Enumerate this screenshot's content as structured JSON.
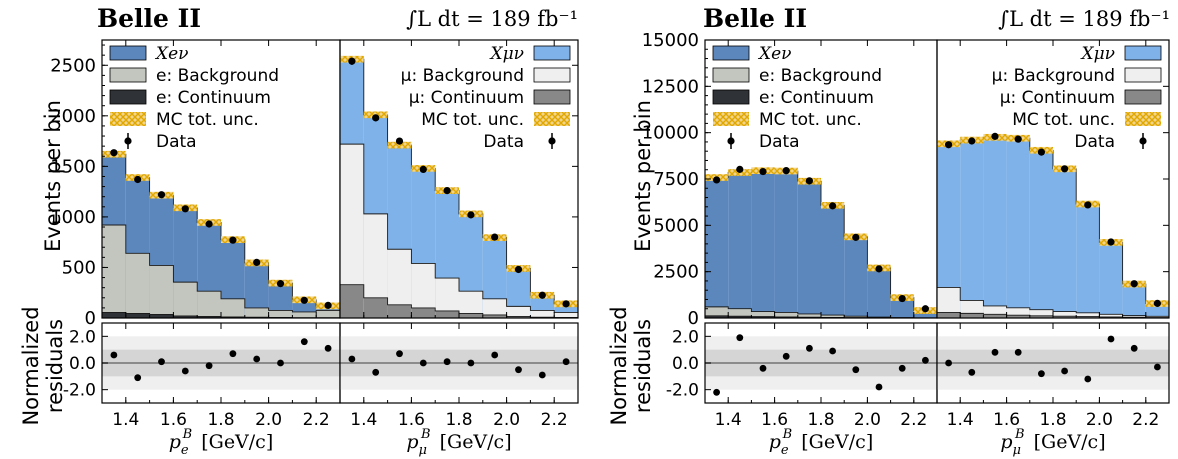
{
  "chart_data": [
    {
      "type": "bar",
      "experiment": "Belle II",
      "luminosity": "∫L dt = 189 fb⁻¹",
      "ylabel": "Events per bin",
      "reslabel": "Normalized residuals",
      "ylim": [
        0,
        2750
      ],
      "yticks": [
        0,
        500,
        1000,
        1500,
        2000,
        2500
      ],
      "res_ylim": [
        -3,
        3
      ],
      "res_yticks": [
        "2.0",
        "0.0",
        "-2.0"
      ],
      "xticks": [
        "1.4",
        "1.6",
        "1.8",
        "2.0",
        "2.2"
      ],
      "panels": [
        {
          "channel": "e",
          "xlabel": "p_e^B [GeV/c]",
          "bins": [
            1.3,
            1.4,
            1.5,
            1.6,
            1.7,
            1.8,
            1.9,
            2.0,
            2.1,
            2.2,
            2.3
          ],
          "legend": [
            {
              "key": "signal",
              "label": "Xeν"
            },
            {
              "key": "background",
              "label": "e: Background"
            },
            {
              "key": "continuum",
              "label": "e: Continuum"
            },
            {
              "key": "unc",
              "label": "MC tot. unc."
            },
            {
              "key": "data",
              "label": "Data"
            }
          ],
          "total": [
            1620,
            1390,
            1215,
            1090,
            945,
            775,
            545,
            345,
            180,
            120
          ],
          "background": [
            920,
            640,
            520,
            355,
            265,
            190,
            100,
            75,
            60,
            75
          ],
          "continuum": [
            55,
            45,
            35,
            20,
            15,
            10,
            8,
            5,
            3,
            3
          ],
          "data": [
            1635,
            1370,
            1220,
            1080,
            930,
            770,
            550,
            340,
            175,
            125
          ],
          "data_err": [
            25,
            25,
            22,
            21,
            19,
            18,
            16,
            14,
            12,
            11
          ],
          "residuals": [
            0.6,
            -1.1,
            0.1,
            -0.6,
            -0.2,
            0.7,
            0.3,
            0.0,
            1.6,
            1.1
          ]
        },
        {
          "channel": "mu",
          "xlabel": "p_μ^B [GeV/c]",
          "bins": [
            1.3,
            1.4,
            1.5,
            1.6,
            1.7,
            1.8,
            1.9,
            2.0,
            2.1,
            2.2,
            2.3
          ],
          "legend": [
            {
              "key": "signal",
              "label": "Xμν"
            },
            {
              "key": "background",
              "label": "μ: Background"
            },
            {
              "key": "continuum",
              "label": "μ: Continuum"
            },
            {
              "key": "unc",
              "label": "MC tot. unc."
            },
            {
              "key": "data",
              "label": "Data"
            }
          ],
          "total": [
            2560,
            2010,
            1710,
            1480,
            1260,
            1030,
            795,
            490,
            225,
            140
          ],
          "background": [
            1720,
            1030,
            680,
            540,
            395,
            265,
            190,
            115,
            75,
            55
          ],
          "continuum": [
            330,
            200,
            130,
            100,
            70,
            45,
            30,
            15,
            8,
            5
          ],
          "data": [
            2540,
            1980,
            1750,
            1470,
            1260,
            1020,
            800,
            480,
            225,
            140
          ],
          "data_err": [
            35,
            32,
            29,
            27,
            25,
            22,
            20,
            16,
            11,
            9
          ],
          "residuals": [
            0.3,
            -0.7,
            0.7,
            0.0,
            0.1,
            0.0,
            0.6,
            -0.5,
            -0.9,
            0.1
          ]
        }
      ]
    },
    {
      "type": "bar",
      "experiment": "Belle II",
      "luminosity": "∫L dt = 189 fb⁻¹",
      "ylabel": "Events per bin",
      "reslabel": "Normalized residuals",
      "ylim": [
        0,
        15000
      ],
      "yticks": [
        0,
        2500,
        5000,
        7500,
        10000,
        12500,
        15000
      ],
      "res_ylim": [
        -3,
        3
      ],
      "res_yticks": [
        "2.0",
        "0.0",
        "-2.0"
      ],
      "xticks": [
        "1.4",
        "1.6",
        "1.8",
        "2.0",
        "2.2"
      ],
      "panels": [
        {
          "channel": "e",
          "xlabel": "p_e^B [GeV/c]",
          "bins": [
            1.3,
            1.4,
            1.5,
            1.6,
            1.7,
            1.8,
            1.9,
            2.0,
            2.1,
            2.2,
            2.3
          ],
          "legend": [
            {
              "key": "signal",
              "label": "Xeν"
            },
            {
              "key": "background",
              "label": "e: Background"
            },
            {
              "key": "continuum",
              "label": "e: Continuum"
            },
            {
              "key": "unc",
              "label": "MC tot. unc."
            },
            {
              "key": "data",
              "label": "Data"
            }
          ],
          "total": [
            7580,
            7850,
            7950,
            7930,
            7380,
            6080,
            4380,
            2700,
            1100,
            400
          ],
          "background": [
            600,
            500,
            350,
            300,
            220,
            160,
            100,
            50,
            25,
            10
          ],
          "continuum": [
            120,
            100,
            80,
            60,
            45,
            30,
            20,
            10,
            5,
            3
          ],
          "data": [
            7450,
            8020,
            7900,
            7950,
            7400,
            6050,
            4350,
            2650,
            1050,
            500
          ],
          "data_err": [
            90,
            90,
            90,
            90,
            85,
            80,
            70,
            55,
            35,
            25
          ],
          "residuals": [
            -2.2,
            1.9,
            -0.4,
            0.5,
            1.1,
            0.9,
            -0.5,
            -1.8,
            -0.4,
            0.2
          ]
        },
        {
          "channel": "mu",
          "xlabel": "p_μ^B [GeV/c]",
          "bins": [
            1.3,
            1.4,
            1.5,
            1.6,
            1.7,
            1.8,
            1.9,
            2.0,
            2.1,
            2.2,
            2.3
          ],
          "legend": [
            {
              "key": "signal",
              "label": "Xμν"
            },
            {
              "key": "background",
              "label": "μ: Background"
            },
            {
              "key": "continuum",
              "label": "μ: Continuum"
            },
            {
              "key": "unc",
              "label": "MC tot. unc."
            },
            {
              "key": "data",
              "label": "Data"
            }
          ],
          "total": [
            9400,
            9600,
            9750,
            9700,
            9050,
            8050,
            6150,
            4080,
            1830,
            780
          ],
          "background": [
            1650,
            950,
            650,
            550,
            450,
            350,
            280,
            200,
            130,
            90
          ],
          "continuum": [
            300,
            250,
            200,
            150,
            120,
            100,
            80,
            60,
            40,
            20
          ],
          "data": [
            9350,
            9550,
            9800,
            9650,
            8950,
            8050,
            6100,
            4100,
            1850,
            790
          ],
          "data_err": [
            95,
            95,
            95,
            95,
            90,
            85,
            75,
            60,
            40,
            28
          ],
          "residuals": [
            0.0,
            -0.7,
            0.8,
            0.8,
            -0.8,
            -0.6,
            -1.2,
            1.8,
            1.1,
            -0.3
          ]
        }
      ]
    }
  ],
  "colors": {
    "e_signal": "#5b87bd",
    "e_background": "#c2c6bf",
    "e_continuum": "#2f3236",
    "mu_signal": "#7fb2e8",
    "mu_background": "#efefef",
    "mu_continuum": "#888888",
    "unc_fill": "#f2d58c",
    "unc_hatch": "#e0a800",
    "band_outer": "#efefef",
    "band_inner": "#d5d5d5",
    "zero_line": "#808080"
  }
}
